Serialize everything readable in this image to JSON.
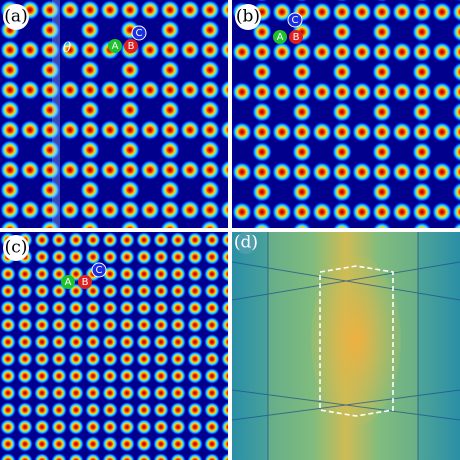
{
  "panels": [
    {
      "label": "(a)",
      "markers": [
        "A",
        "B",
        "C"
      ],
      "angle": "θ"
    },
    {
      "label": "(b)",
      "markers": [
        "A",
        "B",
        "C"
      ]
    },
    {
      "label": "(c)",
      "markers": [
        "A",
        "B",
        "C"
      ]
    },
    {
      "label": "(d)"
    }
  ]
}
